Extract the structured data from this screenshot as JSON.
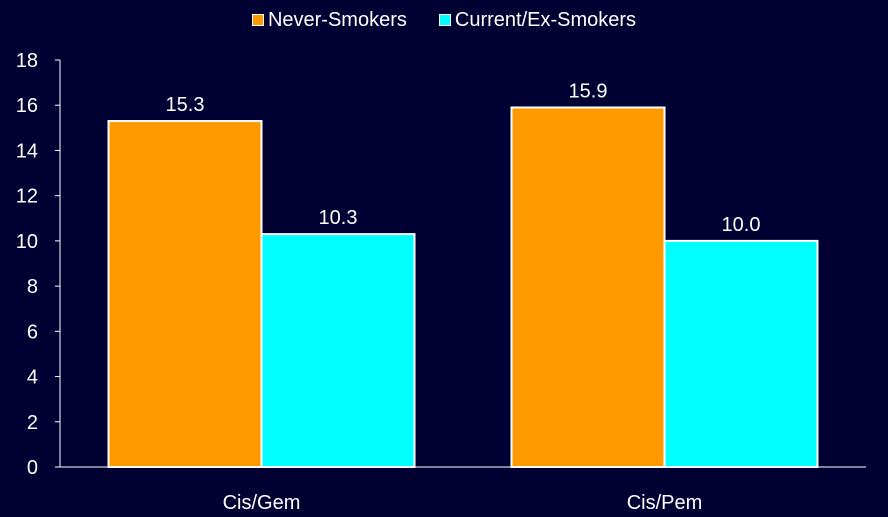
{
  "chart_data": {
    "type": "bar",
    "title": "",
    "xlabel": "",
    "ylabel": "",
    "categories": [
      "Cis/Gem",
      "Cis/Pem"
    ],
    "series": [
      {
        "name": "Never-Smokers",
        "values": [
          15.3,
          15.9
        ],
        "value_labels": [
          "15.3",
          "15.9"
        ],
        "color": "#ff9900"
      },
      {
        "name": "Current/Ex-Smokers",
        "values": [
          10.3,
          10.0
        ],
        "value_labels": [
          "10.3",
          "10.0"
        ],
        "color": "#00ffff"
      }
    ],
    "ylim": [
      0,
      18
    ],
    "yticks": [
      "0",
      "2",
      "4",
      "6",
      "8",
      "10",
      "12",
      "14",
      "16",
      "18"
    ],
    "legend_position": "top-center",
    "grid": false,
    "colors": {
      "background": "#000033",
      "axis": "#ffffff",
      "text": "#ffffff",
      "bar_border": "#ffffff"
    }
  }
}
